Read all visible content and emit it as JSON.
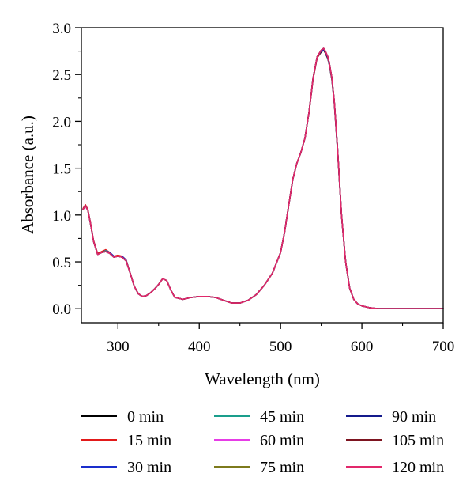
{
  "chart_data": {
    "type": "line",
    "title": "",
    "xlabel": "Wavelength (nm)",
    "ylabel": "Absorbance (a.u.)",
    "xlim": [
      255,
      700
    ],
    "ylim": [
      -0.15,
      3.0
    ],
    "x_ticks": [
      "300",
      "400",
      "500",
      "600",
      "700"
    ],
    "y_ticks": [
      "0.0",
      "0.5",
      "1.0",
      "1.5",
      "2.0",
      "2.5",
      "3.0"
    ],
    "grid": false,
    "legend_position": "bottom",
    "x": [
      257,
      260,
      263,
      266,
      270,
      275,
      280,
      285,
      290,
      295,
      300,
      305,
      310,
      315,
      320,
      325,
      330,
      335,
      340,
      345,
      350,
      355,
      360,
      365,
      370,
      380,
      390,
      400,
      410,
      420,
      430,
      440,
      450,
      460,
      470,
      480,
      490,
      500,
      505,
      510,
      515,
      520,
      525,
      530,
      535,
      540,
      545,
      550,
      553,
      555,
      558,
      560,
      563,
      566,
      570,
      575,
      580,
      585,
      590,
      595,
      600,
      610,
      620,
      650,
      700
    ],
    "series": [
      {
        "name": "0 min",
        "color": "#000000",
        "values": [
          1.06,
          1.1,
          1.05,
          0.92,
          0.72,
          0.58,
          0.6,
          0.62,
          0.59,
          0.55,
          0.56,
          0.56,
          0.52,
          0.38,
          0.24,
          0.16,
          0.13,
          0.14,
          0.17,
          0.21,
          0.26,
          0.32,
          0.3,
          0.2,
          0.12,
          0.1,
          0.12,
          0.13,
          0.13,
          0.12,
          0.09,
          0.06,
          0.06,
          0.09,
          0.15,
          0.25,
          0.38,
          0.6,
          0.82,
          1.1,
          1.38,
          1.55,
          1.67,
          1.82,
          2.1,
          2.45,
          2.68,
          2.74,
          2.76,
          2.73,
          2.67,
          2.6,
          2.45,
          2.2,
          1.7,
          1.0,
          0.5,
          0.22,
          0.1,
          0.05,
          0.03,
          0.01,
          0.0,
          0.0,
          0.0
        ]
      },
      {
        "name": "15 min",
        "color": "#e21a1a",
        "values": [
          1.07,
          1.11,
          1.06,
          0.93,
          0.73,
          0.59,
          0.61,
          0.63,
          0.6,
          0.56,
          0.57,
          0.56,
          0.52,
          0.38,
          0.24,
          0.16,
          0.13,
          0.14,
          0.17,
          0.21,
          0.26,
          0.32,
          0.3,
          0.2,
          0.12,
          0.1,
          0.12,
          0.13,
          0.13,
          0.12,
          0.09,
          0.06,
          0.06,
          0.09,
          0.15,
          0.25,
          0.38,
          0.6,
          0.82,
          1.1,
          1.38,
          1.55,
          1.67,
          1.82,
          2.1,
          2.45,
          2.68,
          2.75,
          2.77,
          2.74,
          2.68,
          2.61,
          2.46,
          2.21,
          1.71,
          1.0,
          0.5,
          0.22,
          0.1,
          0.05,
          0.03,
          0.01,
          0.0,
          0.0,
          0.0
        ]
      },
      {
        "name": "30 min",
        "color": "#1a2ecc",
        "values": [
          1.06,
          1.1,
          1.05,
          0.92,
          0.72,
          0.58,
          0.6,
          0.62,
          0.6,
          0.56,
          0.56,
          0.56,
          0.52,
          0.38,
          0.24,
          0.16,
          0.13,
          0.14,
          0.17,
          0.21,
          0.26,
          0.32,
          0.3,
          0.2,
          0.12,
          0.1,
          0.12,
          0.13,
          0.13,
          0.12,
          0.09,
          0.06,
          0.06,
          0.09,
          0.15,
          0.25,
          0.38,
          0.6,
          0.82,
          1.1,
          1.38,
          1.55,
          1.67,
          1.82,
          2.1,
          2.46,
          2.69,
          2.75,
          2.77,
          2.74,
          2.68,
          2.61,
          2.46,
          2.21,
          1.71,
          1.0,
          0.5,
          0.22,
          0.1,
          0.05,
          0.03,
          0.01,
          0.0,
          0.0,
          0.0
        ]
      },
      {
        "name": "45 min",
        "color": "#1a9e8c",
        "values": [
          1.06,
          1.1,
          1.05,
          0.92,
          0.72,
          0.58,
          0.6,
          0.62,
          0.59,
          0.55,
          0.56,
          0.55,
          0.51,
          0.38,
          0.24,
          0.16,
          0.13,
          0.14,
          0.17,
          0.21,
          0.26,
          0.32,
          0.3,
          0.2,
          0.12,
          0.1,
          0.12,
          0.13,
          0.13,
          0.12,
          0.09,
          0.06,
          0.06,
          0.09,
          0.15,
          0.25,
          0.38,
          0.6,
          0.82,
          1.1,
          1.38,
          1.55,
          1.67,
          1.82,
          2.1,
          2.46,
          2.69,
          2.76,
          2.78,
          2.75,
          2.69,
          2.62,
          2.47,
          2.22,
          1.72,
          1.0,
          0.5,
          0.22,
          0.1,
          0.05,
          0.03,
          0.01,
          0.0,
          0.0,
          0.0
        ]
      },
      {
        "name": "60 min",
        "color": "#e63de6",
        "values": [
          1.06,
          1.1,
          1.05,
          0.92,
          0.72,
          0.58,
          0.6,
          0.61,
          0.59,
          0.55,
          0.56,
          0.55,
          0.51,
          0.38,
          0.24,
          0.16,
          0.13,
          0.14,
          0.17,
          0.21,
          0.26,
          0.32,
          0.3,
          0.2,
          0.12,
          0.1,
          0.12,
          0.13,
          0.13,
          0.12,
          0.09,
          0.06,
          0.06,
          0.09,
          0.15,
          0.25,
          0.38,
          0.6,
          0.82,
          1.1,
          1.38,
          1.55,
          1.67,
          1.82,
          2.1,
          2.46,
          2.69,
          2.76,
          2.78,
          2.75,
          2.69,
          2.62,
          2.47,
          2.22,
          1.72,
          1.0,
          0.5,
          0.22,
          0.1,
          0.05,
          0.03,
          0.01,
          0.0,
          0.0,
          0.0
        ]
      },
      {
        "name": "75 min",
        "color": "#7d7a1c",
        "values": [
          1.06,
          1.1,
          1.05,
          0.92,
          0.72,
          0.58,
          0.6,
          0.61,
          0.59,
          0.55,
          0.56,
          0.55,
          0.51,
          0.38,
          0.24,
          0.16,
          0.13,
          0.14,
          0.17,
          0.21,
          0.26,
          0.32,
          0.3,
          0.2,
          0.12,
          0.1,
          0.12,
          0.13,
          0.13,
          0.12,
          0.09,
          0.06,
          0.06,
          0.09,
          0.15,
          0.25,
          0.38,
          0.6,
          0.82,
          1.1,
          1.38,
          1.55,
          1.67,
          1.82,
          2.1,
          2.46,
          2.69,
          2.76,
          2.78,
          2.75,
          2.69,
          2.62,
          2.47,
          2.22,
          1.72,
          1.0,
          0.5,
          0.22,
          0.1,
          0.05,
          0.03,
          0.01,
          0.0,
          0.0,
          0.0
        ]
      },
      {
        "name": "90 min",
        "color": "#141a8c",
        "values": [
          1.06,
          1.1,
          1.05,
          0.92,
          0.72,
          0.58,
          0.6,
          0.61,
          0.59,
          0.55,
          0.56,
          0.55,
          0.51,
          0.38,
          0.24,
          0.16,
          0.13,
          0.14,
          0.17,
          0.21,
          0.26,
          0.32,
          0.3,
          0.2,
          0.12,
          0.1,
          0.12,
          0.13,
          0.13,
          0.12,
          0.09,
          0.06,
          0.06,
          0.09,
          0.15,
          0.25,
          0.38,
          0.6,
          0.82,
          1.1,
          1.38,
          1.55,
          1.67,
          1.82,
          2.1,
          2.46,
          2.69,
          2.76,
          2.78,
          2.75,
          2.69,
          2.62,
          2.47,
          2.22,
          1.72,
          1.0,
          0.5,
          0.22,
          0.1,
          0.05,
          0.03,
          0.01,
          0.0,
          0.0,
          0.0
        ]
      },
      {
        "name": "105 min",
        "color": "#7d1420",
        "values": [
          1.06,
          1.1,
          1.05,
          0.92,
          0.72,
          0.58,
          0.6,
          0.61,
          0.59,
          0.55,
          0.56,
          0.55,
          0.51,
          0.38,
          0.24,
          0.16,
          0.13,
          0.14,
          0.17,
          0.21,
          0.26,
          0.32,
          0.3,
          0.2,
          0.12,
          0.1,
          0.12,
          0.13,
          0.13,
          0.12,
          0.09,
          0.06,
          0.06,
          0.09,
          0.15,
          0.25,
          0.38,
          0.6,
          0.82,
          1.1,
          1.38,
          1.55,
          1.67,
          1.82,
          2.1,
          2.46,
          2.69,
          2.76,
          2.78,
          2.75,
          2.69,
          2.62,
          2.47,
          2.22,
          1.72,
          1.0,
          0.5,
          0.22,
          0.1,
          0.05,
          0.03,
          0.01,
          0.0,
          0.0,
          0.0
        ]
      },
      {
        "name": "120 min",
        "color": "#e2286b",
        "values": [
          1.06,
          1.1,
          1.05,
          0.92,
          0.72,
          0.58,
          0.6,
          0.61,
          0.59,
          0.55,
          0.56,
          0.55,
          0.51,
          0.38,
          0.24,
          0.16,
          0.13,
          0.14,
          0.17,
          0.21,
          0.26,
          0.32,
          0.3,
          0.2,
          0.12,
          0.1,
          0.12,
          0.13,
          0.13,
          0.12,
          0.09,
          0.06,
          0.06,
          0.09,
          0.15,
          0.25,
          0.38,
          0.6,
          0.82,
          1.1,
          1.38,
          1.55,
          1.67,
          1.82,
          2.1,
          2.46,
          2.69,
          2.76,
          2.78,
          2.75,
          2.69,
          2.62,
          2.47,
          2.22,
          1.72,
          1.0,
          0.5,
          0.22,
          0.1,
          0.05,
          0.03,
          0.01,
          0.0,
          0.0,
          0.0
        ]
      }
    ]
  }
}
